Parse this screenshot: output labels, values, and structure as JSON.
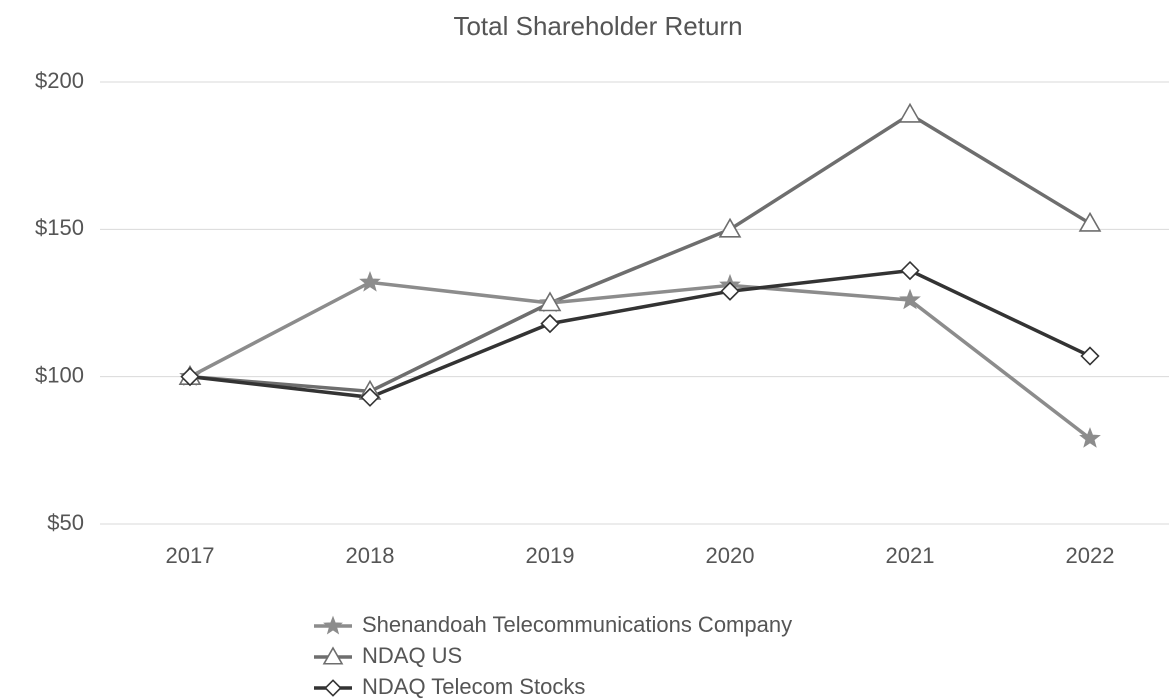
{
  "chart_data": {
    "type": "line",
    "title": "Total Shareholder Return",
    "categories": [
      "2017",
      "2018",
      "2019",
      "2020",
      "2021",
      "2022"
    ],
    "series": [
      {
        "name": "Shenandoah Telecommunications Company",
        "color": "#8c8c8c",
        "marker": "star",
        "values": [
          100,
          132,
          125,
          131,
          126,
          79
        ]
      },
      {
        "name": "NDAQ US",
        "color": "#6e6e6e",
        "marker": "triangle",
        "values": [
          100,
          95,
          125,
          150,
          189,
          152
        ]
      },
      {
        "name": "NDAQ Telecom Stocks",
        "color": "#333333",
        "marker": "diamond",
        "values": [
          100,
          93,
          118,
          129,
          136,
          107
        ]
      }
    ],
    "ylim": [
      50,
      200
    ],
    "yticks": [
      {
        "value": 50,
        "label": "$50"
      },
      {
        "value": 100,
        "label": "$100"
      },
      {
        "value": 150,
        "label": "$150"
      },
      {
        "value": 200,
        "label": "$200"
      }
    ],
    "grid": true,
    "legend": "bottom"
  }
}
